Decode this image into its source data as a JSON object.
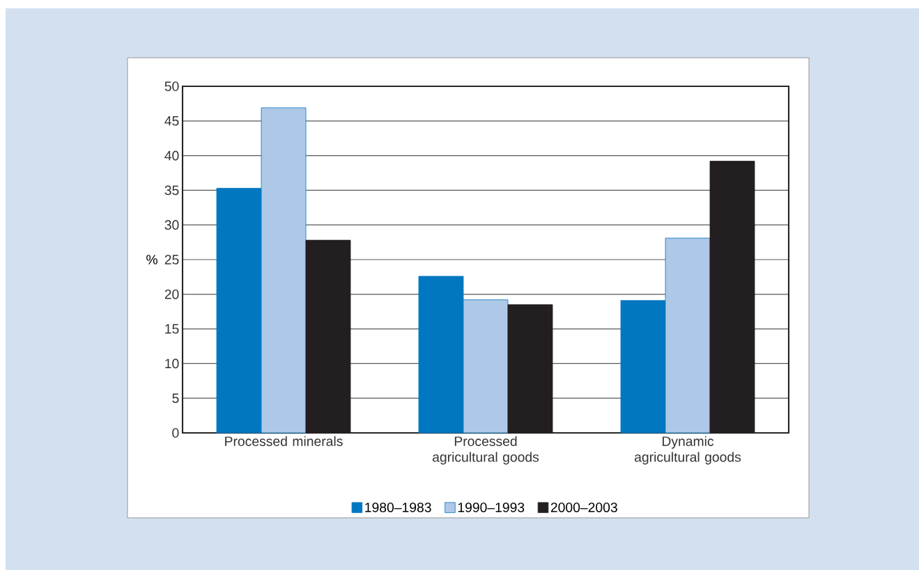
{
  "chart_data": {
    "type": "bar",
    "ylabel": "%",
    "categories": [
      "Processed minerals",
      "Processed agricultural goods",
      "Dynamic agricultural goods"
    ],
    "series": [
      {
        "name": "1980–1983",
        "color": "#0077c0",
        "values": [
          35.3,
          22.6,
          19.1
        ]
      },
      {
        "name": "1990–1993",
        "color": "#aec8e8",
        "values": [
          46.9,
          19.2,
          28.1
        ]
      },
      {
        "name": "2000–2003",
        "color": "#231f20",
        "values": [
          27.8,
          18.5,
          39.2
        ]
      }
    ],
    "ylim": [
      0,
      50
    ],
    "yticks": [
      0,
      5,
      10,
      15,
      20,
      25,
      30,
      35,
      40,
      45,
      50
    ],
    "grid": "y",
    "legend": "bottom"
  }
}
